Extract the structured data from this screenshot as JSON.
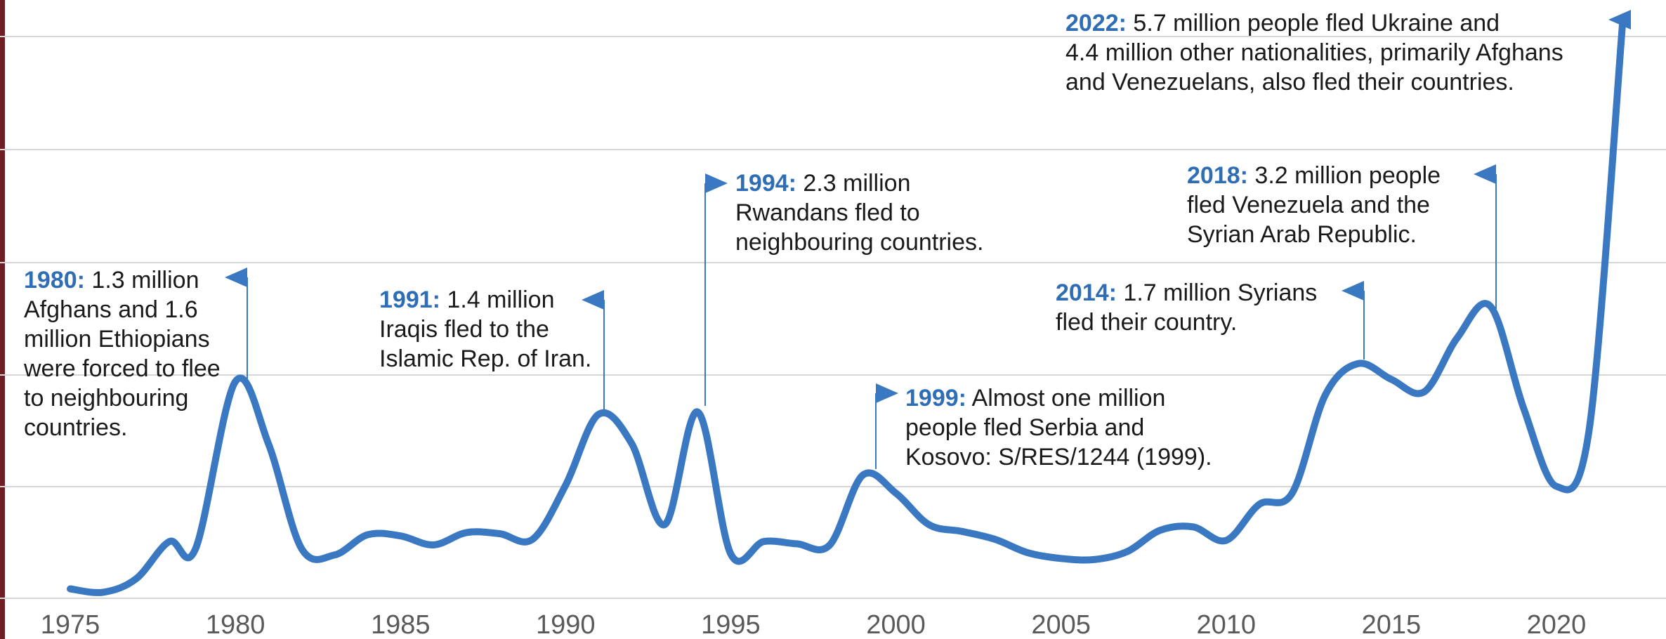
{
  "chart_data": {
    "type": "line",
    "title": "",
    "xlabel": "",
    "ylabel": "",
    "grid": true,
    "line_color": "#3a78c2",
    "x_ticks": [
      1975,
      1980,
      1985,
      1990,
      1995,
      2000,
      2005,
      2010,
      2015,
      2020
    ],
    "series": [
      {
        "x": [
          1975,
          1976,
          1977,
          1978,
          1978.8,
          1980,
          1981,
          1982,
          1983,
          1984,
          1985,
          1986,
          1987,
          1988,
          1989,
          1990,
          1991,
          1992,
          1993,
          1994,
          1995,
          1996,
          1997,
          1998,
          1999,
          2000,
          2001,
          2002,
          2003,
          2004,
          2005,
          2006,
          2007,
          2008,
          2009,
          2010,
          2011,
          2012,
          2013,
          2014,
          2015,
          2016,
          2017,
          2018,
          2019,
          2020,
          2021,
          2022
        ],
        "y": [
          0.09,
          0.06,
          0.18,
          0.51,
          0.45,
          1.93,
          1.38,
          0.45,
          0.39,
          0.57,
          0.56,
          0.48,
          0.59,
          0.58,
          0.53,
          1.01,
          1.64,
          1.38,
          0.66,
          1.66,
          0.4,
          0.51,
          0.49,
          0.48,
          1.1,
          0.94,
          0.66,
          0.6,
          0.53,
          0.41,
          0.36,
          0.35,
          0.42,
          0.61,
          0.64,
          0.52,
          0.84,
          0.94,
          1.81,
          2.09,
          1.95,
          1.84,
          2.32,
          2.6,
          1.7,
          1.0,
          1.52,
          5.1
        ]
      }
    ],
    "annotations": [
      {
        "year_label": "1980:",
        "lines": [
          "1.3 million",
          "Afghans and 1.6",
          "million Ethiopians",
          "were forced to flee",
          "to neighbouring",
          "countries."
        ]
      },
      {
        "year_label": "1991:",
        "lines": [
          "1.4 million",
          "Iraqis fled to the",
          "Islamic Rep. of Iran."
        ]
      },
      {
        "year_label": "1994:",
        "lines": [
          "2.3 million",
          "Rwandans fled to",
          "neighbouring countries."
        ]
      },
      {
        "year_label": "1999:",
        "lines": [
          "Almost one million",
          "people fled Serbia and",
          "Kosovo: S/RES/1244 (1999)."
        ]
      },
      {
        "year_label": "2014:",
        "lines": [
          "1.7 million Syrians",
          "fled their country."
        ]
      },
      {
        "year_label": "2018:",
        "lines": [
          "3.2 million people",
          "fled Venezuela and the",
          "Syrian Arab Republic."
        ]
      },
      {
        "year_label": "2022:",
        "lines": [
          "5.7 million people fled Ukraine and",
          "4.4 million other nationalities, primarily Afghans",
          "and Venezuelans, also fled their countries."
        ]
      }
    ]
  }
}
